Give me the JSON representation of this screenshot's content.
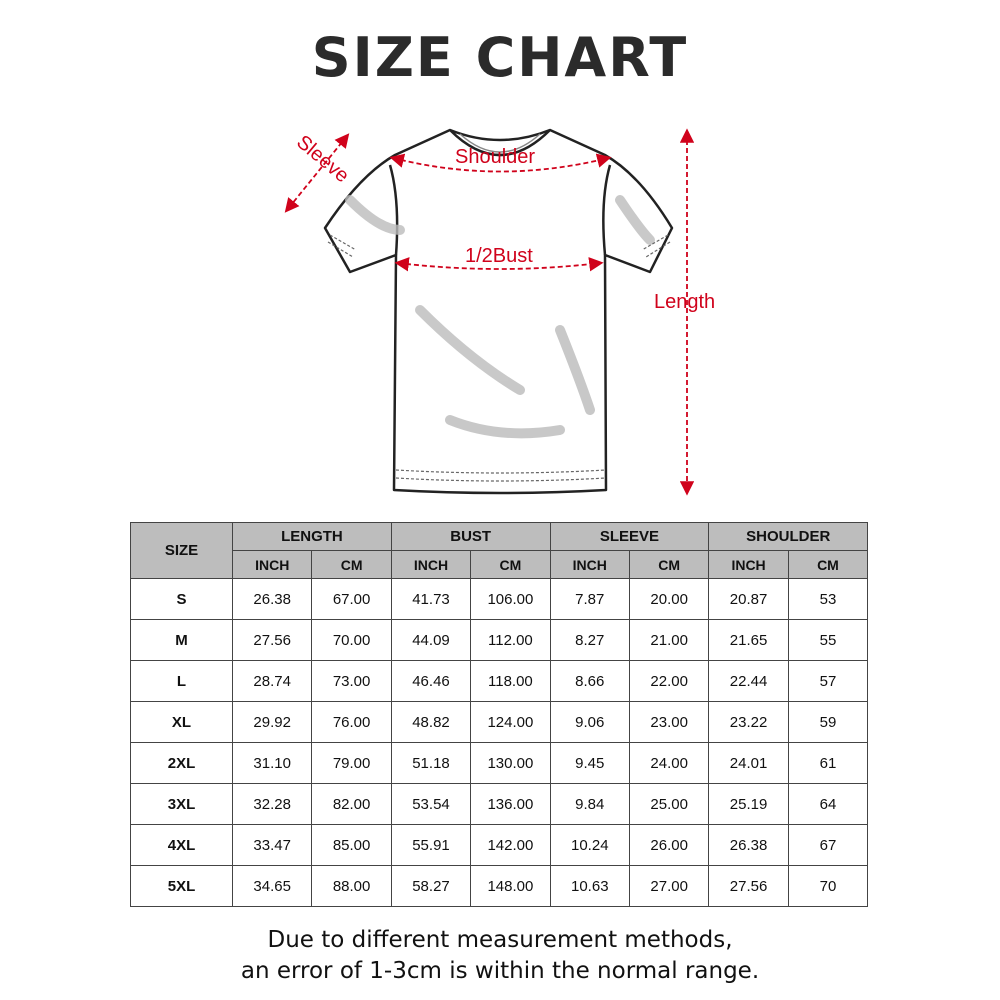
{
  "title": "SIZE CHART",
  "diagram": {
    "labels": {
      "sleeve": "Sleeve",
      "shoulder": "Shoulder",
      "bust": "1/2Bust",
      "length": "Length"
    },
    "accent_color": "#d0021b"
  },
  "table": {
    "size_header": "SIZE",
    "groups": [
      "LENGTH",
      "BUST",
      "SLEEVE",
      "SHOULDER"
    ],
    "units": [
      "INCH",
      "CM",
      "INCH",
      "CM",
      "INCH",
      "CM",
      "INCH",
      "CM"
    ],
    "rows": [
      [
        "S",
        "26.38",
        "67.00",
        "41.73",
        "106.00",
        "7.87",
        "20.00",
        "20.87",
        "53"
      ],
      [
        "M",
        "27.56",
        "70.00",
        "44.09",
        "112.00",
        "8.27",
        "21.00",
        "21.65",
        "55"
      ],
      [
        "L",
        "28.74",
        "73.00",
        "46.46",
        "118.00",
        "8.66",
        "22.00",
        "22.44",
        "57"
      ],
      [
        "XL",
        "29.92",
        "76.00",
        "48.82",
        "124.00",
        "9.06",
        "23.00",
        "23.22",
        "59"
      ],
      [
        "2XL",
        "31.10",
        "79.00",
        "51.18",
        "130.00",
        "9.45",
        "24.00",
        "24.01",
        "61"
      ],
      [
        "3XL",
        "32.28",
        "82.00",
        "53.54",
        "136.00",
        "9.84",
        "25.00",
        "25.19",
        "64"
      ],
      [
        "4XL",
        "33.47",
        "85.00",
        "55.91",
        "142.00",
        "10.24",
        "26.00",
        "26.38",
        "67"
      ],
      [
        "5XL",
        "34.65",
        "88.00",
        "58.27",
        "148.00",
        "10.63",
        "27.00",
        "27.56",
        "70"
      ]
    ]
  },
  "note": {
    "line1": "Due to different measurement methods,",
    "line2": "an error of 1-3cm is within the normal range."
  }
}
